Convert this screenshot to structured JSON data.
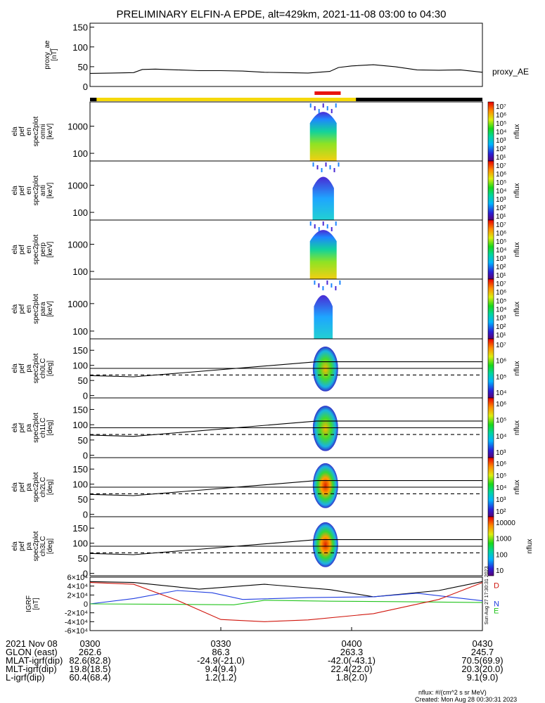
{
  "title": "PRELIMINARY ELFIN-A EPDE, alt=429km, 2021-11-08 03:00 to 04:30",
  "colors": {
    "bar_yellow": "#f5d90a",
    "bar_black": "#000000",
    "bar_red": "#e8140f",
    "line_black": "#000000",
    "line_blue": "#1f3de0",
    "line_green": "#22c41c",
    "line_red": "#d0150c"
  },
  "chart_data": [
    {
      "type": "line",
      "panel": "proxy_ae",
      "ylabel": "proxy_ae\n[nT]",
      "ylim": [
        0,
        160
      ],
      "yticks": [
        0,
        50,
        100,
        150
      ],
      "legend": "proxy_AE",
      "x_minutes": [
        0,
        5,
        10,
        12,
        15,
        20,
        25,
        30,
        35,
        40,
        45,
        50,
        55,
        57,
        60,
        65,
        70,
        75,
        80,
        85,
        90
      ],
      "values": [
        33,
        34,
        35,
        43,
        44,
        42,
        40,
        40,
        39,
        36,
        35,
        34,
        38,
        48,
        52,
        55,
        50,
        42,
        41,
        42,
        36
      ]
    },
    {
      "type": "heatmap",
      "panel": "spec2plot omni",
      "ylabel": "ela\npef\nen\nspec2plot\nomni\n[keV]",
      "yticks": [
        "100",
        "1000"
      ],
      "colorbar_label": "nflux",
      "colorbar_ticks": [
        "10⁷",
        "10⁶",
        "10⁵",
        "10⁴",
        "10³",
        "10²",
        "10¹"
      ]
    },
    {
      "type": "heatmap",
      "panel": "spec2plot anti",
      "ylabel": "ela\npef\nen\nspec2plot\nanti\n[keV]",
      "yticks": [
        "100",
        "1000"
      ],
      "colorbar_label": "nflux",
      "colorbar_ticks": [
        "10⁷",
        "10⁶",
        "10⁵",
        "10⁴",
        "10³",
        "10²",
        "10¹"
      ]
    },
    {
      "type": "heatmap",
      "panel": "spec2plot perp",
      "ylabel": "ela\npef\nen\nspec2plot\nperp\n[keV]",
      "yticks": [
        "100",
        "1000"
      ],
      "colorbar_label": "nflux",
      "colorbar_ticks": [
        "10⁷",
        "10⁶",
        "10⁵",
        "10⁴",
        "10³",
        "10²",
        "10¹"
      ]
    },
    {
      "type": "heatmap",
      "panel": "spec2plot para",
      "ylabel": "ela\npef\nen\nspec2plot\npara\n[keV]",
      "yticks": [
        "100",
        "1000"
      ],
      "colorbar_label": "nflux",
      "colorbar_ticks": [
        "10⁷",
        "10⁶",
        "10⁵",
        "10⁴",
        "10³",
        "10²",
        "10¹"
      ]
    },
    {
      "type": "heatmap",
      "panel": "spec2plot ch0LC",
      "ylabel": "ela\npef\npa\nspec2plot\nch0LC\n[deg]",
      "yticks": [
        "0",
        "50",
        "100",
        "150"
      ],
      "colorbar_label": "nflux",
      "colorbar_ticks": [
        "10⁷",
        "10⁶",
        "10⁵",
        "10⁴"
      ]
    },
    {
      "type": "heatmap",
      "panel": "spec2plot ch1LC",
      "ylabel": "ela\npef\npa\nspec2plot\nch1LC\n[deg]",
      "yticks": [
        "0",
        "50",
        "100",
        "150"
      ],
      "colorbar_label": "nflux",
      "colorbar_ticks": [
        "10⁶",
        "10⁵",
        "10⁴",
        "10³"
      ]
    },
    {
      "type": "heatmap",
      "panel": "spec2plot ch2LC",
      "ylabel": "ela\npef\npa\nspec2plot\nch2LC\n[deg]",
      "yticks": [
        "0",
        "50",
        "100",
        "150"
      ],
      "colorbar_label": "nflux",
      "colorbar_ticks": [
        "10⁶",
        "10⁵",
        "10⁴",
        "10³",
        "10²"
      ]
    },
    {
      "type": "heatmap",
      "panel": "spec2plot ch3LC",
      "ylabel": "ela\npef\npa\nspec2plot\nch3LC\n[deg]",
      "yticks": [
        "0",
        "50",
        "100",
        "150"
      ],
      "colorbar_label": "nflux",
      "colorbar_ticks": [
        "10000",
        "1000",
        "100",
        "10"
      ]
    },
    {
      "type": "line",
      "panel": "IGRF",
      "ylabel": "IGRF\n[nT]",
      "yticks": [
        "-6×10⁴",
        "-4×10⁴",
        "-2×10⁴",
        "0",
        "2×10⁴",
        "4×10⁴",
        "6×10⁴"
      ],
      "ylim": [
        -60000,
        60000
      ],
      "legend": [
        "D",
        "N",
        "E"
      ],
      "series": [
        {
          "name": "black",
          "x_minutes": [
            0,
            10,
            25,
            40,
            55,
            65,
            80,
            90
          ],
          "values": [
            50000,
            48000,
            33000,
            44000,
            32000,
            16000,
            30000,
            50000
          ]
        },
        {
          "name": "blue",
          "x_minutes": [
            0,
            10,
            20,
            28,
            35,
            50,
            65,
            75,
            90
          ],
          "values": [
            0,
            12000,
            30000,
            25000,
            10000,
            14000,
            16000,
            24000,
            7000
          ]
        },
        {
          "name": "green",
          "x_minutes": [
            0,
            18,
            33,
            40,
            55,
            70,
            90
          ],
          "values": [
            0,
            -1000,
            -2000,
            8000,
            6000,
            5000,
            3000
          ]
        },
        {
          "name": "red",
          "x_minutes": [
            0,
            10,
            20,
            30,
            40,
            50,
            65,
            80,
            90
          ],
          "values": [
            48000,
            44000,
            8000,
            -35000,
            -40000,
            -36000,
            -22000,
            10000,
            48000
          ]
        }
      ]
    }
  ],
  "ephemeris": {
    "row_labels": [
      "2021 Nov 08",
      "GLON (east)",
      "MLAT-igrf(dip)",
      "MLT-igrf(dip)",
      "L-igrf(dip)"
    ],
    "times": [
      "0300",
      "0330",
      "0400",
      "0430"
    ],
    "glon": [
      "262.6",
      "86.3",
      "263.3",
      "245.7"
    ],
    "mlat": [
      "82.6(82.8)",
      "-24.9(-21.0)",
      "-42.0(-43.1)",
      "70.5(69.9)"
    ],
    "mlt": [
      "19.8(18.5)",
      "9.4(9.4)",
      "22.4(22.0)",
      "20.3(20.0)"
    ],
    "lshell": [
      "60.4(68.4)",
      "1.2(1.2)",
      "1.8(2.0)",
      "9.1(9.0)"
    ]
  },
  "footer": {
    "units": "nflux: #/(cm^2 s sr MeV)",
    "created": "Created: Mon Aug 28 00:30:31 2023",
    "side_stamp": "Sun Aug 27 17:30:31 2023"
  }
}
